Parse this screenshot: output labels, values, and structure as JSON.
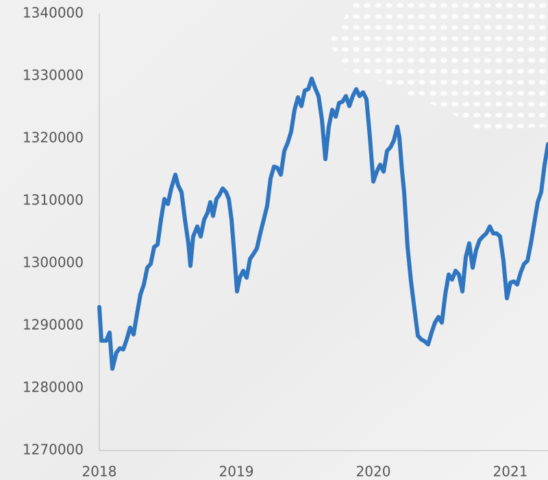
{
  "chart_data": {
    "type": "line",
    "color": "#2f75c0",
    "x": [
      2018.0,
      2018.015,
      2018.05,
      2018.075,
      2018.095,
      2018.125,
      2018.15,
      2018.175,
      2018.2,
      2018.225,
      2018.25,
      2018.275,
      2018.3,
      2018.325,
      2018.35,
      2018.375,
      2018.4,
      2018.425,
      2018.45,
      2018.475,
      2018.5,
      2018.525,
      2018.555,
      2018.575,
      2018.6,
      2018.625,
      2018.65,
      2018.665,
      2018.685,
      2018.715,
      2018.74,
      2018.765,
      2018.79,
      2018.81,
      2018.83,
      2018.855,
      2018.875,
      2018.9,
      2018.925,
      2018.945,
      2018.965,
      2018.985,
      2019.005,
      2019.025,
      2019.05,
      2019.075,
      2019.1,
      2019.125,
      2019.15,
      2019.175,
      2019.2,
      2019.225,
      2019.25,
      2019.275,
      2019.3,
      2019.325,
      2019.35,
      2019.375,
      2019.4,
      2019.425,
      2019.45,
      2019.475,
      2019.5,
      2019.525,
      2019.55,
      2019.575,
      2019.6,
      2019.625,
      2019.65,
      2019.675,
      2019.7,
      2019.725,
      2019.75,
      2019.775,
      2019.8,
      2019.825,
      2019.85,
      2019.875,
      2019.9,
      2019.925,
      2019.95,
      2019.975,
      2020.0,
      2020.025,
      2020.05,
      2020.075,
      2020.1,
      2020.125,
      2020.15,
      2020.175,
      2020.19,
      2020.21,
      2020.225,
      2020.25,
      2020.275,
      2020.3,
      2020.325,
      2020.35,
      2020.375,
      2020.4,
      2020.425,
      2020.45,
      2020.475,
      2020.5,
      2020.525,
      2020.55,
      2020.575,
      2020.6,
      2020.625,
      2020.65,
      2020.675,
      2020.7,
      2020.725,
      2020.75,
      2020.775,
      2020.8,
      2020.825,
      2020.85,
      2020.875,
      2020.9,
      2020.925,
      2020.95,
      2020.975,
      2021.0,
      2021.025,
      2021.05,
      2021.075,
      2021.1,
      2021.125,
      2021.15,
      2021.175,
      2021.2,
      2021.225,
      2021.25,
      2021.275
    ],
    "values": [
      1293000,
      1287600,
      1287600,
      1288900,
      1283100,
      1285700,
      1286400,
      1286200,
      1287800,
      1289700,
      1288600,
      1291900,
      1295000,
      1296600,
      1299300,
      1299900,
      1302600,
      1303000,
      1307000,
      1310300,
      1309500,
      1312000,
      1314200,
      1312500,
      1311400,
      1307000,
      1303200,
      1299600,
      1304300,
      1305900,
      1304300,
      1307000,
      1308100,
      1309800,
      1307600,
      1310300,
      1310900,
      1312000,
      1311400,
      1310300,
      1307000,
      1301500,
      1295500,
      1297700,
      1298800,
      1297700,
      1300700,
      1301500,
      1302400,
      1304800,
      1307000,
      1309200,
      1313600,
      1315500,
      1315300,
      1314200,
      1318000,
      1319300,
      1321100,
      1324600,
      1326600,
      1325200,
      1327700,
      1327900,
      1329600,
      1328100,
      1326800,
      1323000,
      1316700,
      1321900,
      1324600,
      1323500,
      1325700,
      1325900,
      1326800,
      1325200,
      1326800,
      1327900,
      1326800,
      1327400,
      1326300,
      1320200,
      1313100,
      1314700,
      1315800,
      1314700,
      1318000,
      1318600,
      1319700,
      1321900,
      1320200,
      1314700,
      1311400,
      1302600,
      1297100,
      1292700,
      1288400,
      1287800,
      1287500,
      1287000,
      1288900,
      1290500,
      1291400,
      1290500,
      1295000,
      1298200,
      1297400,
      1298800,
      1298200,
      1295500,
      1301000,
      1303200,
      1299300,
      1302100,
      1303700,
      1304300,
      1304800,
      1305900,
      1304800,
      1304800,
      1304300,
      1300400,
      1294400,
      1296900,
      1297100,
      1296600,
      1298500,
      1299900,
      1300400,
      1303200,
      1306500,
      1309800,
      1311400,
      1315800,
      1319100
    ],
    "xlim": [
      2018,
      2021.275
    ],
    "xticks": [
      2018,
      2019,
      2020,
      2021
    ],
    "ylim": [
      1270000,
      1340000
    ],
    "yticks": [
      1270000,
      1280000,
      1290000,
      1300000,
      1310000,
      1320000,
      1330000,
      1340000
    ]
  }
}
